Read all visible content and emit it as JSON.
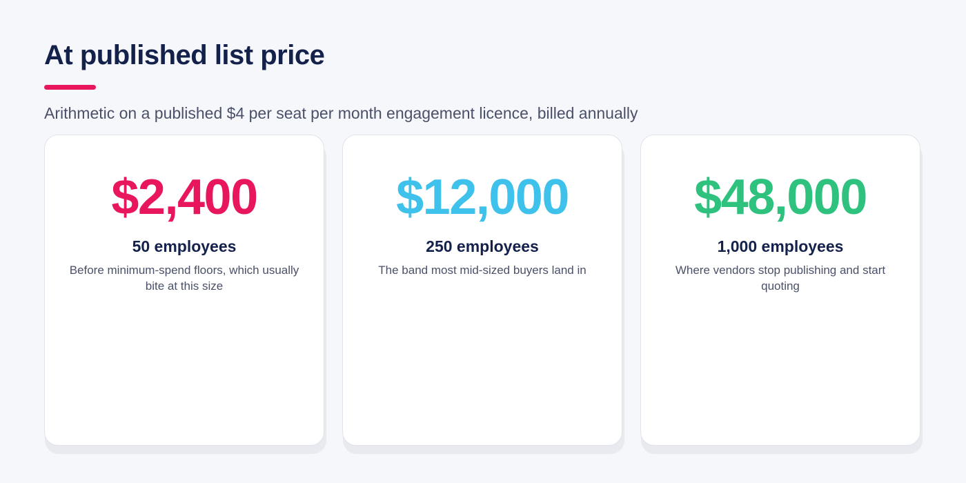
{
  "header": {
    "title": "At published list price",
    "subtitle": "Arithmetic on a published $4 per seat per month engagement licence, billed annually",
    "accent_color": "#e8175d"
  },
  "cards": [
    {
      "price": "$2,400",
      "label": "50 employees",
      "description": "Before minimum-spend floors, which usually bite at this size",
      "color": "#e8175d"
    },
    {
      "price": "$12,000",
      "label": "250 employees",
      "description": "The band most mid-sized buyers land in",
      "color": "#3ec1ea"
    },
    {
      "price": "$48,000",
      "label": "1,000 employees",
      "description": "Where vendors stop publishing and start quoting",
      "color": "#2ec27e"
    }
  ]
}
